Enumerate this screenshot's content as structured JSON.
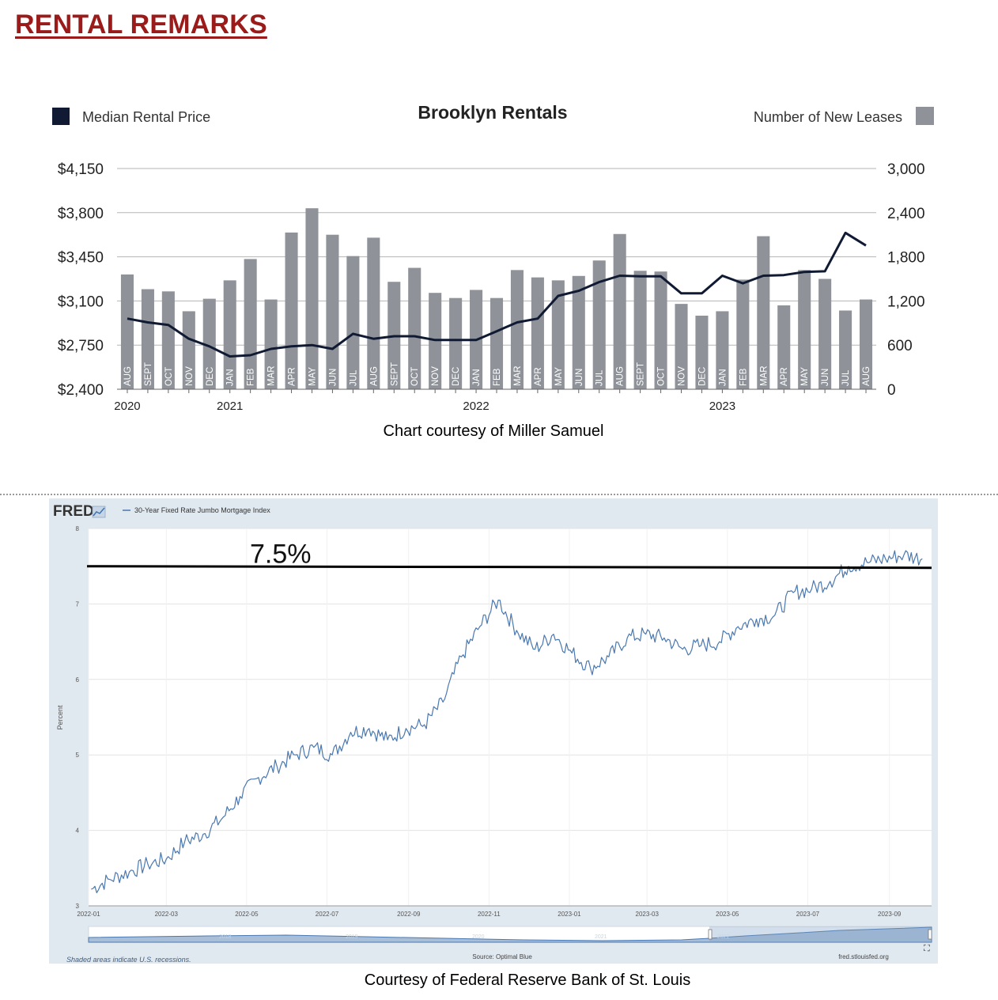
{
  "page": {
    "title": "RENTAL REMARKS",
    "caption_top": "Chart courtesy of Miller Samuel",
    "caption_bottom": "Courtesy of Federal Reserve Bank of St. Louis"
  },
  "chart_data": [
    {
      "type": "bar",
      "title": "Brooklyn Rentals",
      "legend": {
        "left": "Median Rental Price",
        "right": "Number of New Leases",
        "placement": "top"
      },
      "colors": {
        "bars": "#8f9399",
        "line": "#101a33",
        "grid": "#b5b5b5"
      },
      "y_left": {
        "ylim": [
          2400,
          4150
        ],
        "ticks": [
          "$4,150",
          "$3,800",
          "$3,450",
          "$3,100",
          "$2,750",
          "$2,400"
        ]
      },
      "y_right": {
        "ylim": [
          0,
          3000
        ],
        "ticks": [
          "3,000",
          "2,400",
          "1,800",
          "1,200",
          "600",
          "0"
        ]
      },
      "categories": [
        "AUG",
        "SEPT",
        "OCT",
        "NOV",
        "DEC",
        "JAN",
        "FEB",
        "MAR",
        "APR",
        "MAY",
        "JUN",
        "JUL",
        "AUG",
        "SEPT",
        "OCT",
        "NOV",
        "DEC",
        "JAN",
        "FEB",
        "MAR",
        "APR",
        "MAY",
        "JUN",
        "JUL",
        "AUG",
        "SEPT",
        "OCT",
        "NOV",
        "DEC",
        "JAN",
        "FEB",
        "MAR",
        "APR",
        "MAY",
        "JUN",
        "JUL",
        "AUG"
      ],
      "years": [
        {
          "label": "2020",
          "index": 0
        },
        {
          "label": "2021",
          "index": 5
        },
        {
          "label": "2022",
          "index": 17
        },
        {
          "label": "2023",
          "index": 29
        }
      ],
      "series": [
        {
          "name": "Number of New Leases",
          "kind": "bar",
          "axis": "right",
          "values": [
            1560,
            1360,
            1330,
            1060,
            1230,
            1480,
            1770,
            1220,
            2130,
            2460,
            2100,
            1810,
            2060,
            1460,
            1650,
            1310,
            1240,
            1350,
            1240,
            1620,
            1520,
            1480,
            1540,
            1750,
            2110,
            1610,
            1600,
            1160,
            1000,
            1060,
            1490,
            2080,
            1140,
            1620,
            1500,
            1070,
            1220
          ]
        },
        {
          "name": "Median Rental Price",
          "kind": "line",
          "axis": "left",
          "values": [
            2960,
            2930,
            2910,
            2800,
            2740,
            2660,
            2670,
            2720,
            2740,
            2750,
            2720,
            2840,
            2800,
            2820,
            2820,
            2790,
            2790,
            2790,
            2860,
            2930,
            2960,
            3140,
            3180,
            3250,
            3300,
            3295,
            3295,
            3160,
            3160,
            3300,
            3240,
            3300,
            3305,
            3330,
            3335,
            3640,
            3540
          ]
        }
      ]
    },
    {
      "type": "line",
      "source": "FRED",
      "series_label": "30-Year Fixed Rate Jumbo Mortgage Index",
      "ylabel": "Percent",
      "ylim": [
        3,
        8
      ],
      "yticks": [
        "8",
        "7",
        "6",
        "5",
        "4",
        "3"
      ],
      "xticks": [
        "2022-01",
        "2022-03",
        "2022-05",
        "2022-07",
        "2022-09",
        "2022-11",
        "2023-01",
        "2023-03",
        "2023-05",
        "2023-07",
        "2023-09"
      ],
      "annotation": {
        "value": 7.5,
        "label": "7.5%"
      },
      "nav_labels": [
        "2018",
        "2019",
        "2020",
        "2021",
        "2022"
      ],
      "footer": {
        "recessions": "Shaded areas indicate U.S. recessions.",
        "source": "Source: Optimal Blue",
        "site": "fred.stlouisfed.org"
      },
      "colors": {
        "line": "#4a78b0",
        "annotation_line": "#000000",
        "panel_bg": "#e1e9f0"
      },
      "series": [
        {
          "name": "30-Year Fixed Rate Jumbo Mortgage Index",
          "points": [
            [
              "2022-01-03",
              3.22
            ],
            [
              "2022-01-17",
              3.35
            ],
            [
              "2022-02-01",
              3.45
            ],
            [
              "2022-02-15",
              3.55
            ],
            [
              "2022-03-01",
              3.62
            ],
            [
              "2022-03-15",
              3.85
            ],
            [
              "2022-03-29",
              3.95
            ],
            [
              "2022-04-12",
              4.15
            ],
            [
              "2022-04-26",
              4.45
            ],
            [
              "2022-05-10",
              4.7
            ],
            [
              "2022-05-24",
              4.85
            ],
            [
              "2022-06-07",
              5.0
            ],
            [
              "2022-06-21",
              5.1
            ],
            [
              "2022-07-05",
              5.0
            ],
            [
              "2022-07-19",
              5.3
            ],
            [
              "2022-08-02",
              5.35
            ],
            [
              "2022-08-16",
              5.2
            ],
            [
              "2022-08-30",
              5.35
            ],
            [
              "2022-09-13",
              5.4
            ],
            [
              "2022-09-27",
              5.7
            ],
            [
              "2022-10-11",
              6.3
            ],
            [
              "2022-10-25",
              6.7
            ],
            [
              "2022-11-08",
              7.05
            ],
            [
              "2022-11-22",
              6.65
            ],
            [
              "2022-12-06",
              6.4
            ],
            [
              "2022-12-20",
              6.6
            ],
            [
              "2023-01-03",
              6.35
            ],
            [
              "2023-01-17",
              6.15
            ],
            [
              "2023-01-31",
              6.3
            ],
            [
              "2023-02-14",
              6.55
            ],
            [
              "2023-02-28",
              6.6
            ],
            [
              "2023-03-14",
              6.55
            ],
            [
              "2023-03-28",
              6.4
            ],
            [
              "2023-04-11",
              6.45
            ],
            [
              "2023-04-25",
              6.5
            ],
            [
              "2023-05-09",
              6.7
            ],
            [
              "2023-05-23",
              6.8
            ],
            [
              "2023-06-06",
              6.85
            ],
            [
              "2023-06-20",
              7.15
            ],
            [
              "2023-07-04",
              7.2
            ],
            [
              "2023-07-18",
              7.3
            ],
            [
              "2023-08-01",
              7.5
            ],
            [
              "2023-08-15",
              7.55
            ],
            [
              "2023-08-29",
              7.6
            ],
            [
              "2023-09-12",
              7.65
            ],
            [
              "2023-09-26",
              7.6
            ]
          ]
        }
      ]
    }
  ]
}
